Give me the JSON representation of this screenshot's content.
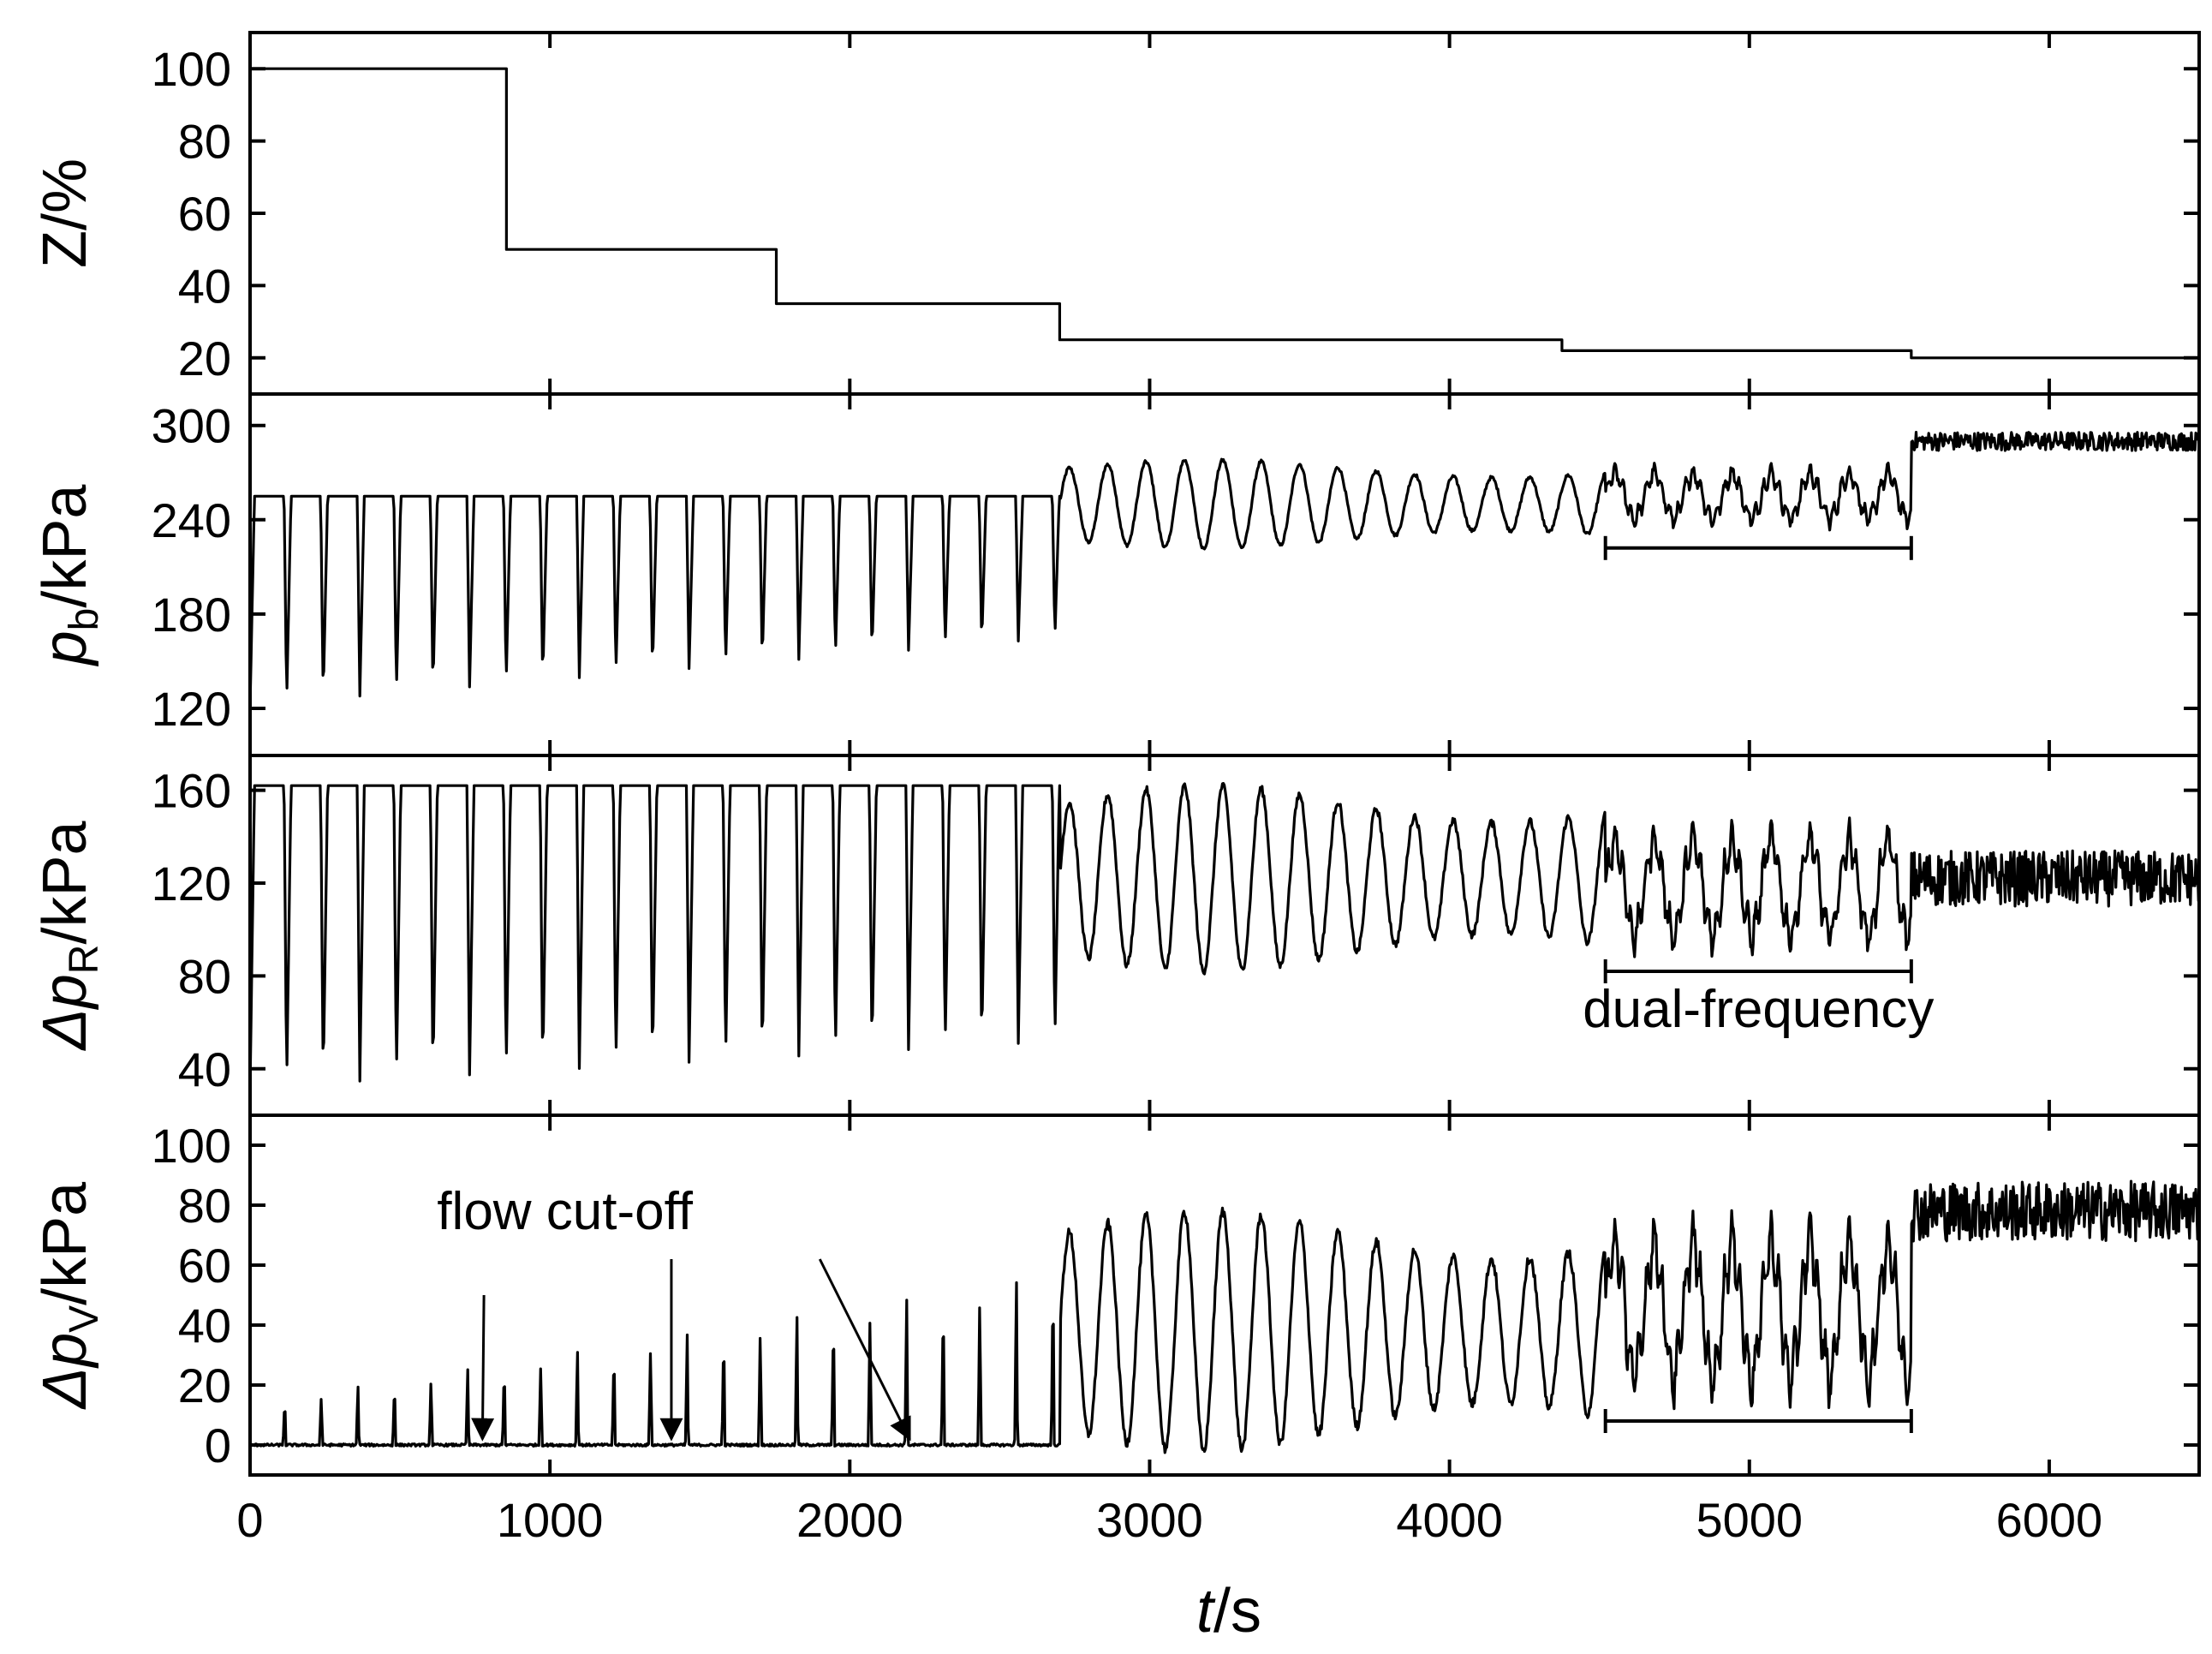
{
  "chart_data": {
    "type": "line",
    "layout": "stacked",
    "x_axis": {
      "label_italic": "t",
      "label_rest": "/s",
      "range": [
        0,
        6500
      ],
      "ticks": [
        0,
        1000,
        2000,
        3000,
        4000,
        5000,
        6000
      ],
      "tick_labels": [
        "0",
        "1000",
        "2000",
        "3000",
        "4000",
        "5000",
        "6000"
      ]
    },
    "line_color": "#000000",
    "panels": [
      {
        "id": "Z",
        "ylabel": {
          "main": "Z",
          "main_italic": false,
          "sub": "",
          "rest": "/%"
        },
        "ylim": [
          10,
          110
        ],
        "yticks": [
          20,
          40,
          60,
          80,
          100
        ],
        "ytick_labels": [
          "20",
          "40",
          "60",
          "80",
          "100"
        ],
        "kind": "steps",
        "steps": [
          {
            "from": 0,
            "to": 855,
            "value": 100
          },
          {
            "from": 855,
            "to": 1755,
            "value": 50
          },
          {
            "from": 1755,
            "to": 2700,
            "value": 35
          },
          {
            "from": 2700,
            "to": 4375,
            "value": 25
          },
          {
            "from": 4375,
            "to": 5540,
            "value": 22
          },
          {
            "from": 5540,
            "to": 6500,
            "value": 20
          }
        ]
      },
      {
        "id": "pb",
        "ylabel": {
          "main": "p",
          "main_italic": true,
          "sub": "b",
          "rest": "/kPa"
        },
        "ylim": [
          90,
          320
        ],
        "yticks": [
          120,
          180,
          240,
          300
        ],
        "ytick_labels": [
          "120",
          "180",
          "240",
          "300"
        ],
        "kind": "signal",
        "regimes": [
          {
            "from": 0,
            "to": 2700,
            "type": "relaxation",
            "period": 122,
            "max": 255,
            "min_start": 122,
            "min_end": 165
          },
          {
            "from": 2700,
            "to": 4520,
            "type": "oscillation",
            "period": 128,
            "mid": 250,
            "amp": 28
          },
          {
            "from": 4520,
            "to": 5540,
            "type": "dual",
            "mid": 255,
            "amp": 14
          },
          {
            "from": 5540,
            "to": 6500,
            "type": "noisy",
            "mid": 290,
            "amp": 6
          }
        ],
        "marker": {
          "from": 4520,
          "to": 5540,
          "y": 222
        }
      },
      {
        "id": "dpR",
        "ylabel": {
          "main": "Δp",
          "main_italic": true,
          "sub": "R",
          "rest": "/kPa"
        },
        "ylim": [
          20,
          175
        ],
        "yticks": [
          40,
          80,
          120,
          160
        ],
        "ytick_labels": [
          "40",
          "80",
          "120",
          "160"
        ],
        "kind": "signal",
        "regimes": [
          {
            "from": 0,
            "to": 2700,
            "type": "relaxation",
            "period": 122,
            "max": 162,
            "min_start": 32,
            "min_end": 52
          },
          {
            "from": 2700,
            "to": 4520,
            "type": "oscillation",
            "period": 128,
            "mid": 122,
            "amp": 40
          },
          {
            "from": 4520,
            "to": 5540,
            "type": "dual",
            "mid": 118,
            "amp": 20
          },
          {
            "from": 5540,
            "to": 6500,
            "type": "noisy",
            "mid": 122,
            "amp": 12
          }
        ],
        "marker": {
          "from": 4520,
          "to": 5540,
          "y": 82
        },
        "annotation": {
          "text": "dual-frequency",
          "x": 5030,
          "y": 58
        }
      },
      {
        "id": "dpV",
        "ylabel": {
          "main": "Δp",
          "main_italic": true,
          "sub": "V",
          "rest": "/kPa"
        },
        "ylim": [
          -10,
          110
        ],
        "yticks": [
          0,
          20,
          40,
          60,
          80,
          100
        ],
        "ytick_labels": [
          "0",
          "20",
          "40",
          "60",
          "80",
          "100"
        ],
        "kind": "signal",
        "regimes": [
          {
            "from": 0,
            "to": 2700,
            "type": "spikes",
            "period": 122,
            "amp_start": 14,
            "amp_end": 58
          },
          {
            "from": 2700,
            "to": 4520,
            "type": "oscillation",
            "period": 128,
            "mid": 38,
            "amp": 40
          },
          {
            "from": 4520,
            "to": 5540,
            "type": "dual",
            "mid": 45,
            "amp": 22
          },
          {
            "from": 5540,
            "to": 6500,
            "type": "noisy",
            "mid": 78,
            "amp": 10
          }
        ],
        "marker": {
          "from": 4520,
          "to": 5540,
          "y": 8
        },
        "annotation": {
          "text": "flow cut-off",
          "text_x": 1050,
          "text_y": 72,
          "arrows": [
            {
              "tail": [
                780,
                50
              ],
              "head": [
                775,
                2
              ]
            },
            {
              "tail": [
                1405,
                62
              ],
              "head": [
                1405,
                2
              ]
            },
            {
              "tail": [
                1900,
                62
              ],
              "head": [
                2200,
                2
              ]
            }
          ]
        }
      }
    ]
  }
}
